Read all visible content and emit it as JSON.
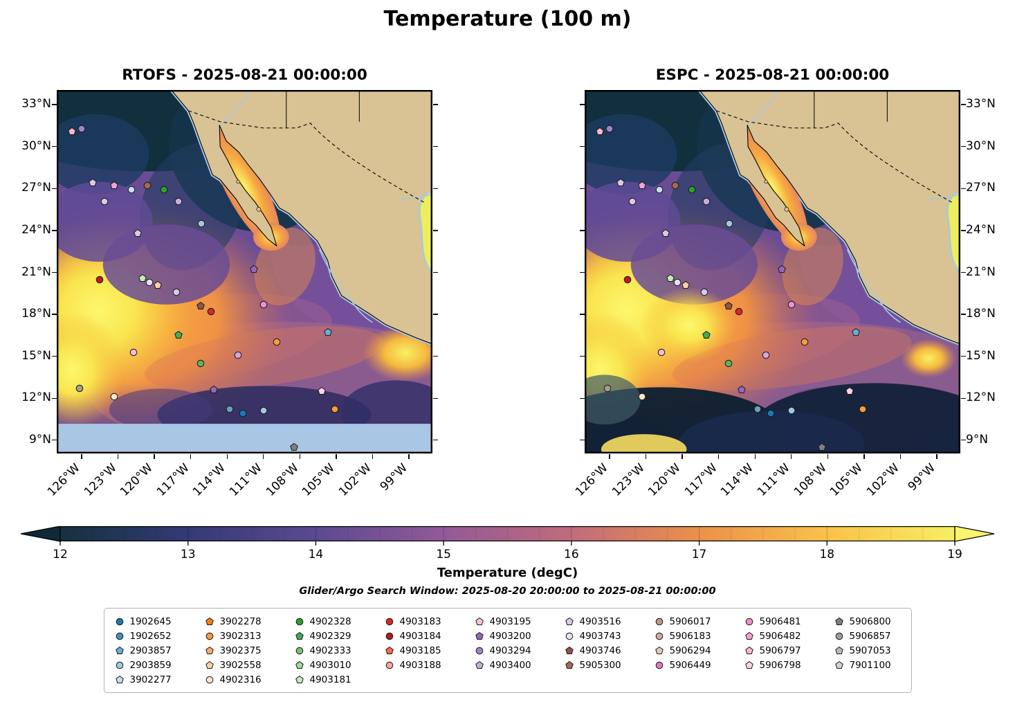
{
  "chart_data": {
    "type": "heatmap",
    "title": "Temperature (100 m)",
    "subtitle": "Glider/Argo Search Window: 2025-08-20 20:00:00 to 2025-08-21 00:00:00",
    "panels": [
      {
        "id": "rtofs",
        "title": "RTOFS - 2025-08-21 00:00:00",
        "bottom_nodata_band": true
      },
      {
        "id": "espc",
        "title": "ESPC - 2025-08-21 00:00:00",
        "bottom_nodata_band": false
      }
    ],
    "axes": {
      "lon_range": [
        -128,
        -97
      ],
      "lat_range": [
        8,
        34
      ],
      "x_ticks": [
        {
          "lon": -126,
          "label": "126°W"
        },
        {
          "lon": -123,
          "label": "123°W"
        },
        {
          "lon": -120,
          "label": "120°W"
        },
        {
          "lon": -117,
          "label": "117°W"
        },
        {
          "lon": -114,
          "label": "114°W"
        },
        {
          "lon": -111,
          "label": "111°W"
        },
        {
          "lon": -108,
          "label": "108°W"
        },
        {
          "lon": -105,
          "label": "105°W"
        },
        {
          "lon": -102,
          "label": "102°W"
        },
        {
          "lon": -99,
          "label": "99°W"
        }
      ],
      "y_ticks": [
        {
          "lat": 33,
          "label": "33°N"
        },
        {
          "lat": 30,
          "label": "30°N"
        },
        {
          "lat": 27,
          "label": "27°N"
        },
        {
          "lat": 24,
          "label": "24°N"
        },
        {
          "lat": 21,
          "label": "21°N"
        },
        {
          "lat": 18,
          "label": "18°N"
        },
        {
          "lat": 15,
          "label": "15°N"
        },
        {
          "lat": 12,
          "label": "12°N"
        },
        {
          "lat": 9,
          "label": "9°N"
        }
      ]
    },
    "colorbar": {
      "label": "Temperature (degC)",
      "min": 12,
      "max": 19,
      "ticks": [
        "12",
        "13",
        "14",
        "15",
        "16",
        "17",
        "18",
        "19"
      ],
      "stops": [
        {
          "pos": 0.0,
          "color": "#15313f"
        },
        {
          "pos": 0.14,
          "color": "#333a74"
        },
        {
          "pos": 0.29,
          "color": "#5c4a92"
        },
        {
          "pos": 0.43,
          "color": "#925a96"
        },
        {
          "pos": 0.57,
          "color": "#c06b7c"
        },
        {
          "pos": 0.71,
          "color": "#ea8f4a"
        },
        {
          "pos": 0.86,
          "color": "#fbc24a"
        },
        {
          "pos": 1.0,
          "color": "#f7ee63"
        }
      ],
      "under_color": "#0e2a36",
      "over_color": "#fbf46f"
    },
    "map_colors": {
      "land": "#d9c294",
      "coast_shallow": "#a9c7e4",
      "nodata_band": "#a9c7e4",
      "gulf_of_mexico": "#edee5b"
    },
    "legend_columns": [
      [
        {
          "id": "1902645",
          "shape": "circle",
          "color": "#1f77b4"
        },
        {
          "id": "1902652",
          "shape": "circle",
          "color": "#4292c6"
        },
        {
          "id": "2903857",
          "shape": "pentagon",
          "color": "#6baed6"
        },
        {
          "id": "2903859",
          "shape": "circle",
          "color": "#9ecae1"
        },
        {
          "id": "3902277",
          "shape": "pentagon",
          "color": "#c6dbef"
        }
      ],
      [
        {
          "id": "3902278",
          "shape": "pentagon",
          "color": "#ff7f0e"
        },
        {
          "id": "3902313",
          "shape": "circle",
          "color": "#fd9a3c"
        },
        {
          "id": "3902375",
          "shape": "pentagon",
          "color": "#fdae6b"
        },
        {
          "id": "3902558",
          "shape": "pentagon",
          "color": "#fdd0a2"
        },
        {
          "id": "4902316",
          "shape": "circle",
          "color": "#fee6ce"
        }
      ],
      [
        {
          "id": "4902328",
          "shape": "circle",
          "color": "#2ca02c"
        },
        {
          "id": "4902329",
          "shape": "pentagon",
          "color": "#41ab5d"
        },
        {
          "id": "4902333",
          "shape": "circle",
          "color": "#74c476"
        },
        {
          "id": "4903010",
          "shape": "pentagon",
          "color": "#a1d99b"
        },
        {
          "id": "4903181",
          "shape": "pentagon",
          "color": "#c7e9c0"
        }
      ],
      [
        {
          "id": "4903183",
          "shape": "circle",
          "color": "#d62728"
        },
        {
          "id": "4903184",
          "shape": "circle",
          "color": "#b01c1c"
        },
        {
          "id": "4903185",
          "shape": "pentagon",
          "color": "#fb6a4a"
        },
        {
          "id": "4903188",
          "shape": "circle",
          "color": "#fca49a"
        }
      ],
      [
        {
          "id": "4903195",
          "shape": "pentagon",
          "color": "#fbc4cf"
        },
        {
          "id": "4903200",
          "shape": "pentagon",
          "color": "#9467bd"
        },
        {
          "id": "4903294",
          "shape": "circle",
          "color": "#a583ca"
        },
        {
          "id": "4903400",
          "shape": "pentagon",
          "color": "#c5b0d5"
        }
      ],
      [
        {
          "id": "4903516",
          "shape": "pentagon",
          "color": "#dac9ea"
        },
        {
          "id": "4903743",
          "shape": "circle",
          "color": "#e9def2"
        },
        {
          "id": "4903746",
          "shape": "pentagon",
          "color": "#8c564b"
        },
        {
          "id": "5905300",
          "shape": "pentagon",
          "color": "#9e6b53"
        }
      ],
      [
        {
          "id": "5906017",
          "shape": "circle",
          "color": "#bc9a86"
        },
        {
          "id": "5906183",
          "shape": "circle",
          "color": "#d1ac9c"
        },
        {
          "id": "5906294",
          "shape": "pentagon",
          "color": "#e4cabb"
        },
        {
          "id": "5906449",
          "shape": "circle",
          "color": "#e377c2"
        }
      ],
      [
        {
          "id": "5906481",
          "shape": "circle",
          "color": "#ec93cd"
        },
        {
          "id": "5906482",
          "shape": "pentagon",
          "color": "#f0a3d3"
        },
        {
          "id": "5906797",
          "shape": "pentagon",
          "color": "#f7b6d2"
        },
        {
          "id": "5906798",
          "shape": "pentagon",
          "color": "#fbd3e6"
        }
      ],
      [
        {
          "id": "5906800",
          "shape": "pentagon",
          "color": "#7f7f7f"
        },
        {
          "id": "5906857",
          "shape": "circle",
          "color": "#9c9c9c"
        },
        {
          "id": "5907053",
          "shape": "pentagon",
          "color": "#bcbcbc"
        },
        {
          "id": "7901100",
          "shape": "pentagon",
          "color": "#d6cfcb"
        }
      ]
    ],
    "float_markers": [
      {
        "lon": -126.8,
        "lat": 31.1,
        "shape": "pentagon",
        "color": "#f7b6d2"
      },
      {
        "lon": -126.0,
        "lat": 31.3,
        "shape": "circle",
        "color": "#a583ca"
      },
      {
        "lon": -125.1,
        "lat": 27.4,
        "shape": "pentagon",
        "color": "#dac9ea"
      },
      {
        "lon": -123.3,
        "lat": 27.2,
        "shape": "pentagon",
        "color": "#f0a3d3"
      },
      {
        "lon": -124.1,
        "lat": 26.1,
        "shape": "circle",
        "color": "#e0c6e8"
      },
      {
        "lon": -121.9,
        "lat": 26.9,
        "shape": "circle",
        "color": "#c6dbef"
      },
      {
        "lon": -120.6,
        "lat": 27.2,
        "shape": "circle",
        "color": "#9e6b53"
      },
      {
        "lon": -119.2,
        "lat": 26.9,
        "shape": "circle",
        "color": "#2ca02c"
      },
      {
        "lon": -118.0,
        "lat": 26.1,
        "shape": "circle",
        "color": "#c5b0d5"
      },
      {
        "lon": -116.1,
        "lat": 24.5,
        "shape": "circle",
        "color": "#9ecae1"
      },
      {
        "lon": -121.4,
        "lat": 23.8,
        "shape": "pentagon",
        "color": "#dac9ea"
      },
      {
        "lon": -124.5,
        "lat": 20.5,
        "shape": "circle",
        "color": "#c01a1a"
      },
      {
        "lon": -121.0,
        "lat": 20.6,
        "shape": "pentagon",
        "color": "#c7e9c0"
      },
      {
        "lon": -120.4,
        "lat": 20.3,
        "shape": "circle",
        "color": "#e8def4"
      },
      {
        "lon": -119.7,
        "lat": 20.1,
        "shape": "pentagon",
        "color": "#fdd0a2"
      },
      {
        "lon": -118.2,
        "lat": 19.6,
        "shape": "circle",
        "color": "#d9c9ea"
      },
      {
        "lon": -111.8,
        "lat": 21.2,
        "shape": "pentagon",
        "color": "#9467bd"
      },
      {
        "lon": -116.2,
        "lat": 18.6,
        "shape": "pentagon",
        "color": "#8c564b"
      },
      {
        "lon": -115.3,
        "lat": 18.2,
        "shape": "circle",
        "color": "#d62728"
      },
      {
        "lon": -111.0,
        "lat": 18.7,
        "shape": "circle",
        "color": "#ec93cd"
      },
      {
        "lon": -118.0,
        "lat": 16.5,
        "shape": "pentagon",
        "color": "#41ab5d"
      },
      {
        "lon": -105.7,
        "lat": 16.7,
        "shape": "pentagon",
        "color": "#6baed6"
      },
      {
        "lon": -109.9,
        "lat": 16.0,
        "shape": "circle",
        "color": "#fd9a3c"
      },
      {
        "lon": -121.7,
        "lat": 15.3,
        "shape": "circle",
        "color": "#f5b8da"
      },
      {
        "lon": -113.1,
        "lat": 15.1,
        "shape": "circle",
        "color": "#d5a6d9"
      },
      {
        "lon": -116.2,
        "lat": 14.5,
        "shape": "circle",
        "color": "#57b65c"
      },
      {
        "lon": -126.2,
        "lat": 12.7,
        "shape": "circle",
        "color": "#a89a90"
      },
      {
        "lon": -115.1,
        "lat": 12.6,
        "shape": "pentagon",
        "color": "#9467bd"
      },
      {
        "lon": -106.2,
        "lat": 12.5,
        "shape": "pentagon",
        "color": "#fbd3e6"
      },
      {
        "lon": -123.3,
        "lat": 12.1,
        "shape": "circle",
        "color": "#fee6ce"
      },
      {
        "lon": -113.8,
        "lat": 11.2,
        "shape": "circle",
        "color": "#6b9fb8"
      },
      {
        "lon": -112.7,
        "lat": 10.9,
        "shape": "circle",
        "color": "#1f77b4"
      },
      {
        "lon": -111.0,
        "lat": 11.1,
        "shape": "circle",
        "color": "#9ecae1"
      },
      {
        "lon": -105.1,
        "lat": 11.2,
        "shape": "circle",
        "color": "#fd9a3c"
      },
      {
        "lon": -108.5,
        "lat": 8.5,
        "shape": "pentagon",
        "color": "#7f7f7f"
      }
    ]
  }
}
